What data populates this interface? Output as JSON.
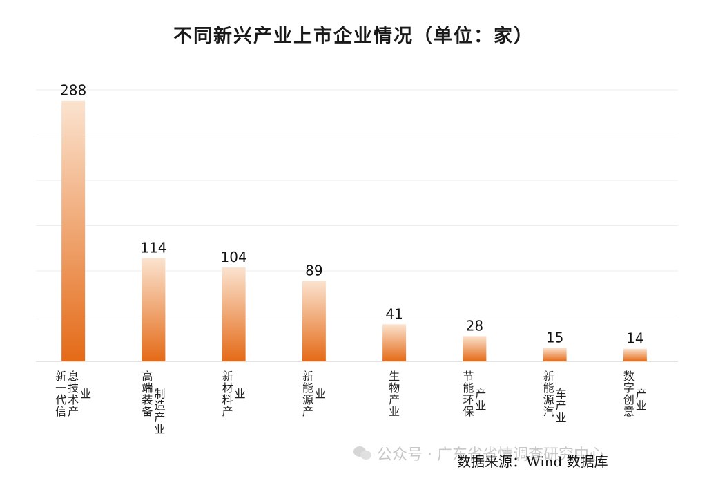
{
  "title": "不同新兴产业上市企业情况（单位：家）",
  "source": "数据来源：Wind 数据库",
  "watermark": "公众号 · 广东省省情调查研究中心",
  "colors": {
    "bar_top": "#fbe3cf",
    "bar_bottom": "#e46a17",
    "grid": "#eeeeee",
    "axis": "#d9d9d9"
  },
  "chart_data": {
    "type": "bar",
    "title": "不同新兴产业上市企业情况（单位：家）",
    "categories": [
      "新一代信息技术产业",
      "高端装备制造产业",
      "新材料产业",
      "新能源产业",
      "生物产业",
      "节能环保产业",
      "新能源汽车产业",
      "数字创意产业"
    ],
    "category_columns": [
      [
        "新一代信",
        "息技术产",
        "业"
      ],
      [
        "高端装备",
        "制造产业"
      ],
      [
        "新材料产",
        "业"
      ],
      [
        "新能源产",
        "业"
      ],
      [
        "生物产业"
      ],
      [
        "节能环保",
        "产业"
      ],
      [
        "新能源汽",
        "车产业"
      ],
      [
        "数字创意",
        "产业"
      ]
    ],
    "values": [
      288,
      114,
      104,
      89,
      41,
      28,
      15,
      14
    ],
    "ylim": [
      0,
      300
    ],
    "grid": true,
    "legend": "none"
  }
}
